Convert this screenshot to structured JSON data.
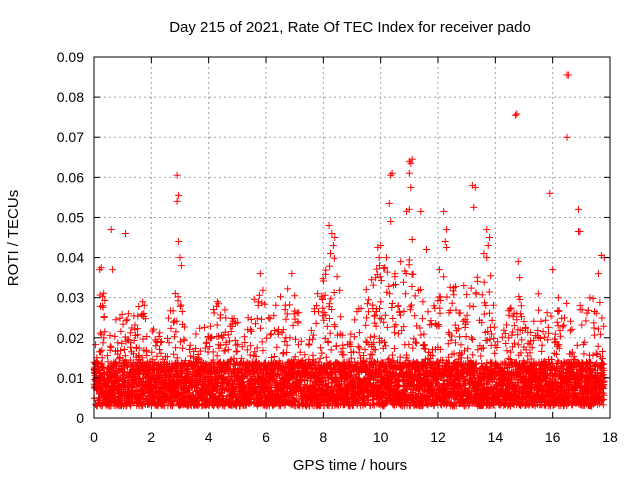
{
  "chart_data": {
    "type": "scatter",
    "title": "Day 215 of 2021, Rate Of TEC Index for receiver pado",
    "xlabel": "GPS time / hours",
    "ylabel": "ROTI / TECUs",
    "xlim": [
      0,
      18
    ],
    "ylim": [
      0,
      0.09
    ],
    "xticks": [
      0,
      2,
      4,
      6,
      8,
      10,
      12,
      14,
      16,
      18
    ],
    "xtick_labels": [
      "0",
      "2",
      "4",
      "6",
      "8",
      "10",
      "12",
      "14",
      "16",
      "18"
    ],
    "yticks": [
      0,
      0.01,
      0.02,
      0.03,
      0.04,
      0.05,
      0.06,
      0.07,
      0.08,
      0.09
    ],
    "ytick_labels": [
      "0",
      "0.01",
      "0.02",
      "0.03",
      "0.04",
      "0.05",
      "0.06",
      "0.07",
      "0.08",
      "0.09"
    ],
    "grid": true,
    "marker": "+",
    "color": "#ff0000",
    "x_end": 17.8,
    "baseline_band": [
      0.003,
      0.014
    ],
    "series": [
      {
        "name": "ROTI",
        "highlight_points": [
          {
            "x": 0.2,
            "y": 0.037
          },
          {
            "x": 0.25,
            "y": 0.0375
          },
          {
            "x": 0.3,
            "y": 0.028
          },
          {
            "x": 0.6,
            "y": 0.047
          },
          {
            "x": 1.1,
            "y": 0.046
          },
          {
            "x": 0.65,
            "y": 0.037
          },
          {
            "x": 2.9,
            "y": 0.0605
          },
          {
            "x": 2.95,
            "y": 0.0555
          },
          {
            "x": 2.9,
            "y": 0.054
          },
          {
            "x": 2.95,
            "y": 0.044
          },
          {
            "x": 3.0,
            "y": 0.04
          },
          {
            "x": 3.05,
            "y": 0.038
          },
          {
            "x": 8.2,
            "y": 0.048
          },
          {
            "x": 8.3,
            "y": 0.046
          },
          {
            "x": 8.35,
            "y": 0.043
          },
          {
            "x": 8.25,
            "y": 0.041
          },
          {
            "x": 8.4,
            "y": 0.045
          },
          {
            "x": 9.9,
            "y": 0.0425
          },
          {
            "x": 10.0,
            "y": 0.043
          },
          {
            "x": 9.95,
            "y": 0.04
          },
          {
            "x": 10.35,
            "y": 0.0605
          },
          {
            "x": 10.4,
            "y": 0.061
          },
          {
            "x": 10.3,
            "y": 0.0535
          },
          {
            "x": 10.35,
            "y": 0.049
          },
          {
            "x": 10.2,
            "y": 0.04
          },
          {
            "x": 10.7,
            "y": 0.039
          },
          {
            "x": 11.0,
            "y": 0.064
          },
          {
            "x": 11.05,
            "y": 0.0635
          },
          {
            "x": 11.1,
            "y": 0.0645
          },
          {
            "x": 11.0,
            "y": 0.061
          },
          {
            "x": 11.05,
            "y": 0.0575
          },
          {
            "x": 11.0,
            "y": 0.052
          },
          {
            "x": 10.9,
            "y": 0.0515
          },
          {
            "x": 11.1,
            "y": 0.0445
          },
          {
            "x": 11.4,
            "y": 0.0515
          },
          {
            "x": 11.6,
            "y": 0.042
          },
          {
            "x": 12.2,
            "y": 0.0515
          },
          {
            "x": 12.3,
            "y": 0.047
          },
          {
            "x": 12.25,
            "y": 0.044
          },
          {
            "x": 12.3,
            "y": 0.0425
          },
          {
            "x": 12.05,
            "y": 0.037
          },
          {
            "x": 13.2,
            "y": 0.058
          },
          {
            "x": 13.3,
            "y": 0.0575
          },
          {
            "x": 13.25,
            "y": 0.0525
          },
          {
            "x": 13.7,
            "y": 0.047
          },
          {
            "x": 13.8,
            "y": 0.045
          },
          {
            "x": 13.75,
            "y": 0.043
          },
          {
            "x": 13.7,
            "y": 0.04
          },
          {
            "x": 13.6,
            "y": 0.041
          },
          {
            "x": 14.7,
            "y": 0.0755
          },
          {
            "x": 14.75,
            "y": 0.0758
          },
          {
            "x": 14.8,
            "y": 0.039
          },
          {
            "x": 14.85,
            "y": 0.035
          },
          {
            "x": 15.9,
            "y": 0.056
          },
          {
            "x": 16.0,
            "y": 0.037
          },
          {
            "x": 16.5,
            "y": 0.0855
          },
          {
            "x": 16.55,
            "y": 0.0855
          },
          {
            "x": 16.5,
            "y": 0.07
          },
          {
            "x": 16.9,
            "y": 0.052
          },
          {
            "x": 16.95,
            "y": 0.0465
          },
          {
            "x": 16.9,
            "y": 0.0465
          },
          {
            "x": 17.7,
            "y": 0.0405
          },
          {
            "x": 17.8,
            "y": 0.04
          },
          {
            "x": 17.6,
            "y": 0.036
          },
          {
            "x": 0.1,
            "y": 0.015
          },
          {
            "x": 1.2,
            "y": 0.026
          },
          {
            "x": 1.7,
            "y": 0.029
          },
          {
            "x": 4.3,
            "y": 0.029
          },
          {
            "x": 5.8,
            "y": 0.036
          },
          {
            "x": 6.9,
            "y": 0.036
          },
          {
            "x": 7.8,
            "y": 0.031
          },
          {
            "x": 9.5,
            "y": 0.032
          },
          {
            "x": 12.9,
            "y": 0.033
          },
          {
            "x": 15.5,
            "y": 0.031
          },
          {
            "x": 16.2,
            "y": 0.03
          },
          {
            "x": 17.3,
            "y": 0.03
          }
        ],
        "peak_envelope": [
          {
            "x": 0.0,
            "y": 0.016
          },
          {
            "x": 0.25,
            "y": 0.035
          },
          {
            "x": 0.6,
            "y": 0.02
          },
          {
            "x": 0.85,
            "y": 0.027
          },
          {
            "x": 1.2,
            "y": 0.025
          },
          {
            "x": 1.7,
            "y": 0.03
          },
          {
            "x": 2.2,
            "y": 0.02
          },
          {
            "x": 2.6,
            "y": 0.026
          },
          {
            "x": 2.95,
            "y": 0.036
          },
          {
            "x": 3.3,
            "y": 0.02
          },
          {
            "x": 3.9,
            "y": 0.024
          },
          {
            "x": 4.3,
            "y": 0.029
          },
          {
            "x": 4.8,
            "y": 0.026
          },
          {
            "x": 5.2,
            "y": 0.022
          },
          {
            "x": 5.8,
            "y": 0.036
          },
          {
            "x": 6.2,
            "y": 0.026
          },
          {
            "x": 6.9,
            "y": 0.036
          },
          {
            "x": 7.3,
            "y": 0.022
          },
          {
            "x": 7.8,
            "y": 0.03
          },
          {
            "x": 8.3,
            "y": 0.044
          },
          {
            "x": 8.8,
            "y": 0.022
          },
          {
            "x": 9.4,
            "y": 0.03
          },
          {
            "x": 10.0,
            "y": 0.04
          },
          {
            "x": 10.5,
            "y": 0.036
          },
          {
            "x": 11.0,
            "y": 0.04
          },
          {
            "x": 11.6,
            "y": 0.028
          },
          {
            "x": 12.2,
            "y": 0.04
          },
          {
            "x": 12.8,
            "y": 0.03
          },
          {
            "x": 13.3,
            "y": 0.038
          },
          {
            "x": 13.8,
            "y": 0.037
          },
          {
            "x": 14.2,
            "y": 0.022
          },
          {
            "x": 14.8,
            "y": 0.035
          },
          {
            "x": 15.2,
            "y": 0.022
          },
          {
            "x": 15.6,
            "y": 0.03
          },
          {
            "x": 16.0,
            "y": 0.025
          },
          {
            "x": 16.4,
            "y": 0.03
          },
          {
            "x": 16.9,
            "y": 0.028
          },
          {
            "x": 17.4,
            "y": 0.03
          },
          {
            "x": 17.8,
            "y": 0.03
          }
        ]
      }
    ]
  }
}
